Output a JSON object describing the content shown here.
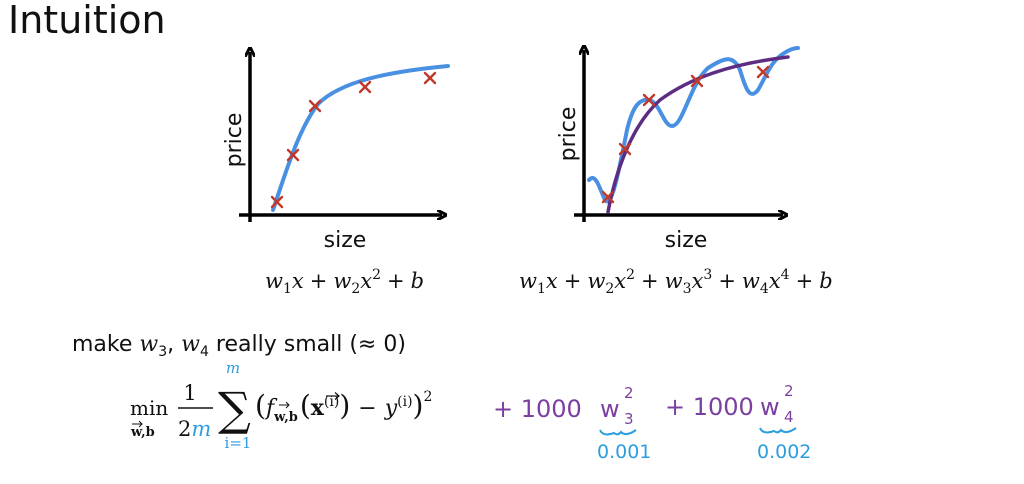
{
  "slide": {
    "title": "Intuition"
  },
  "left_plot": {
    "y_label": "price",
    "x_label": "size",
    "formula": {
      "w1": "w",
      "sub1": "1",
      "x1": "x",
      "plus1": "+",
      "w2": "w",
      "sub2": "2",
      "x2": "x",
      "sup2": "2",
      "plus2": "+",
      "b": "b"
    }
  },
  "right_plot": {
    "y_label": "price",
    "x_label": "size",
    "formula": {
      "w1": "w",
      "sub1": "1",
      "x1": "x",
      "plus1": "+",
      "w2": "w",
      "sub2": "2",
      "x2": "x",
      "sup2": "2",
      "plus2": "+",
      "w3": "w",
      "sub3": "3",
      "x3": "x",
      "sup3": "3",
      "plus3": "+",
      "w4": "w",
      "sub4": "4",
      "x4": "x",
      "sup4": "4",
      "plus4": "+",
      "b": "b"
    }
  },
  "note": {
    "prefix": "make ",
    "w3": "w",
    "sub3": "3",
    "comma": ", ",
    "w4": "w",
    "sub4": "4",
    "suffix": " really small (≈ 0)"
  },
  "cost": {
    "min": "min",
    "min_sub": "w,b",
    "frac_num": "1",
    "frac_den_2": "2",
    "frac_den_m": "m",
    "sum_sym": "∑",
    "sum_top": "m",
    "sum_bottom": "i=1",
    "open_paren": "(",
    "f": "f",
    "f_sub": "w,b",
    "x_vec": "x",
    "x_sup": "(i)",
    "minus": "−",
    "y": "y",
    "y_sup": "(i)",
    "close_paren": ")",
    "square": "2"
  },
  "annotations": {
    "reg1": "+ 1000",
    "reg1_w": "w",
    "reg1_sup": "2",
    "reg1_sub": "3",
    "reg1_value": "0.001",
    "reg2": "+ 1000",
    "reg2_w": "w",
    "reg2_sup": "2",
    "reg2_sub": "4",
    "reg2_value": "0.002"
  },
  "colors": {
    "axis": "#000000",
    "fit_curve": "#4a90e2",
    "overfit_curve": "#4a90e2",
    "regularized_curve": "#5c2d82",
    "data_point": "#c0392b",
    "annotation_purple": "#7b3fa0",
    "annotation_blue": "#2e9de0",
    "text": "#111111"
  }
}
